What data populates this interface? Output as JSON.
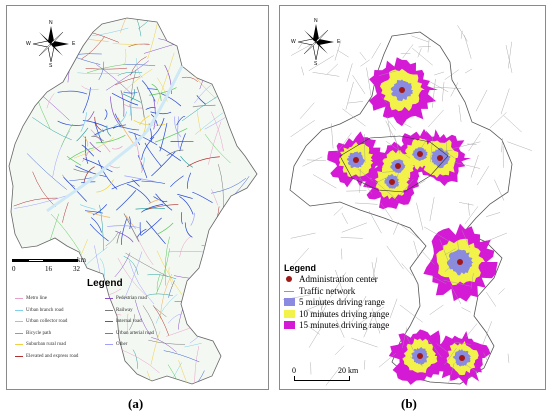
{
  "panel_a": {
    "caption": "(a)",
    "legend_title": "Legend",
    "legend_items": [
      {
        "label": "Metro line",
        "color": "#e8a0c8"
      },
      {
        "label": "Urban branch road",
        "color": "#7fd0e8"
      },
      {
        "label": "Urban collector road",
        "color": "#f4b05a"
      },
      {
        "label": "Bicycle path",
        "color": "#5ac85a"
      },
      {
        "label": "Suburban rural road",
        "color": "#f0d040"
      },
      {
        "label": "Elevated and express road",
        "color": "#b03030"
      },
      {
        "label": "Pedestrian road",
        "color": "#8a4fc8"
      },
      {
        "label": "Railway",
        "color": "#7a7a7a"
      },
      {
        "label": "Internal road",
        "color": "#3a5fd0"
      },
      {
        "label": "Urban arterial road",
        "color": "#2aa0a0"
      },
      {
        "label": "Other",
        "color": "#a0a0ff"
      }
    ],
    "scale_ticks": [
      "0",
      "16",
      "32"
    ],
    "scale_unit": "km",
    "compass": {
      "n": "N",
      "s": "S",
      "e": "E",
      "w": "W"
    }
  },
  "panel_b": {
    "caption": "(b)",
    "legend_title": "Legend",
    "legend_items": [
      {
        "label": "Administration center",
        "kind": "dot",
        "color": "#a01818"
      },
      {
        "label": "Traffic network",
        "kind": "line",
        "color": "#9a9a9a"
      },
      {
        "label": "5 minutes driving range",
        "kind": "box",
        "color": "#8a8ae0"
      },
      {
        "label": "10 minutes driving range",
        "kind": "box",
        "color": "#f2f24a"
      },
      {
        "label": "15 minutes driving range",
        "kind": "box",
        "color": "#d41ad4"
      }
    ],
    "scale_ticks": [
      "0",
      "20 km"
    ],
    "compass": {
      "n": "N",
      "s": "S",
      "e": "E",
      "w": "W"
    }
  }
}
